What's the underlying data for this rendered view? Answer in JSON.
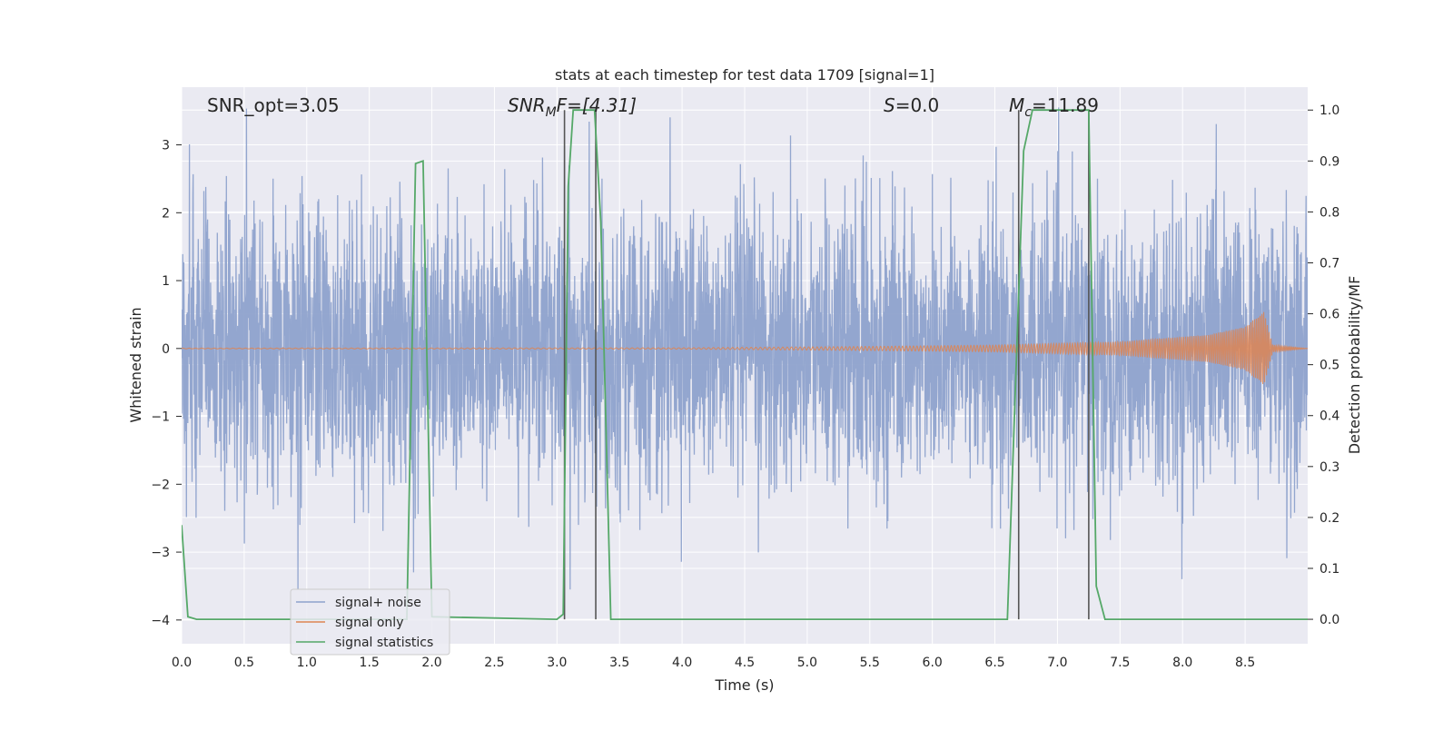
{
  "chart_data": {
    "type": "line",
    "title": "stats at each timestep for test data 1709 [signal=1]",
    "xlabel": "Time (s)",
    "ylabel": "Whitened strain",
    "ylabel_right": "Detection probability/MF",
    "xlim": [
      0.0,
      9.0
    ],
    "ylim": [
      -4.35,
      3.85
    ],
    "ylim_right": [
      -0.048,
      1.045
    ],
    "xticks": [
      0.0,
      0.5,
      1.0,
      1.5,
      2.0,
      2.5,
      3.0,
      3.5,
      4.0,
      4.5,
      5.0,
      5.5,
      6.0,
      6.5,
      7.0,
      7.5,
      8.0,
      8.5
    ],
    "xtick_labels": [
      "0.0",
      "0.5",
      "1.0",
      "1.5",
      "2.0",
      "2.5",
      "3.0",
      "3.5",
      "4.0",
      "4.5",
      "5.0",
      "5.5",
      "6.0",
      "6.5",
      "7.0",
      "7.5",
      "8.0",
      "8.5"
    ],
    "yticks": [
      3,
      2,
      1,
      0,
      -1,
      -2,
      -3,
      -4
    ],
    "ytick_labels": [
      "3",
      "2",
      "1",
      "0",
      "−1",
      "−2",
      "−3",
      "−4"
    ],
    "yticks_right": [
      1.0,
      0.9,
      0.8,
      0.7,
      0.6,
      0.5,
      0.4,
      0.3,
      0.2,
      0.1,
      0.0
    ],
    "ytick_labels_right": [
      "1.0",
      "0.9",
      "0.8",
      "0.7",
      "0.6",
      "0.5",
      "0.4",
      "0.3",
      "0.2",
      "0.1",
      "0.0"
    ],
    "grid": true,
    "legend_position": "lower-left",
    "annotations": {
      "snr_opt": "SNR_opt=3.05",
      "snr_mf_main": "SNR",
      "snr_mf_sub": "M",
      "snr_mf_rest": "F=[4.31]",
      "s_main": "S",
      "s_rest": "=0.0",
      "mc_main": "M",
      "mc_sub": "c",
      "mc_rest": "=11.89"
    },
    "series": [
      {
        "name": "signal+ noise",
        "color": "#8ea2cc",
        "axis": "left",
        "description": "whitened noisy strain, approx. unit-variance noise spanning about -3.5 to 3.5",
        "amplitude_envelope": [
          [
            0.0,
            1.0
          ],
          [
            9.0,
            1.0
          ]
        ]
      },
      {
        "name": "signal only",
        "color": "#dd8452",
        "axis": "left",
        "description": "chirp waveform, near-zero amplitude growing to merger near t=8.65 s",
        "amplitude_envelope": [
          [
            0.0,
            0.005
          ],
          [
            4.0,
            0.01
          ],
          [
            5.5,
            0.03
          ],
          [
            6.5,
            0.05
          ],
          [
            7.5,
            0.1
          ],
          [
            8.2,
            0.2
          ],
          [
            8.5,
            0.32
          ],
          [
            8.65,
            0.55
          ],
          [
            8.72,
            0.05
          ],
          [
            9.0,
            0.0
          ]
        ]
      },
      {
        "name": "signal statistics",
        "color": "#55a868",
        "axis": "right",
        "x": [
          0.0,
          0.05,
          0.12,
          1.8,
          1.87,
          1.93,
          2.0,
          3.0,
          3.05,
          3.09,
          3.13,
          3.3,
          3.35,
          3.43,
          3.5,
          6.6,
          6.73,
          6.8,
          7.25,
          7.31,
          7.38,
          9.0
        ],
        "y": [
          0.185,
          0.005,
          0.0,
          0.0,
          0.895,
          0.9,
          0.005,
          0.0,
          0.01,
          0.85,
          1.0,
          1.0,
          0.78,
          0.0,
          0.0,
          0.0,
          0.92,
          1.0,
          1.0,
          0.065,
          0.0,
          0.0
        ]
      }
    ],
    "vertical_markers": {
      "color": "#555555",
      "x": [
        3.06,
        3.31,
        6.69,
        7.25
      ]
    }
  }
}
